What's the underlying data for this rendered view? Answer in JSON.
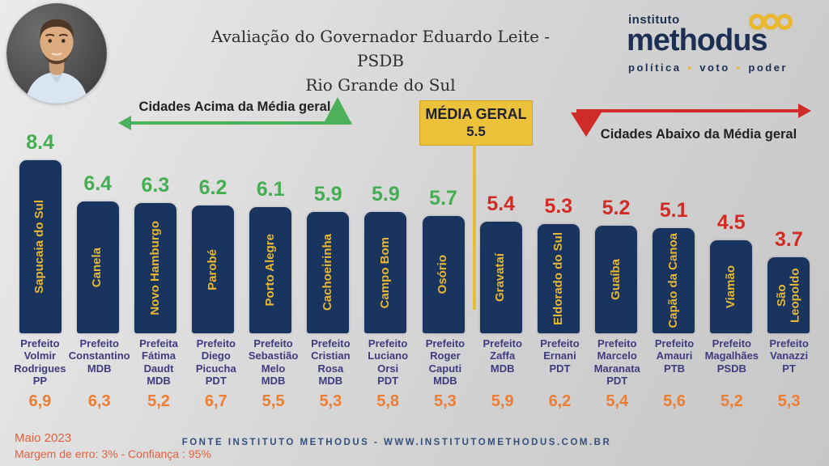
{
  "header": {
    "title_line1": "Avaliação do Governador Eduardo Leite - PSDB",
    "title_line2": "Rio Grande do Sul",
    "logo": {
      "top": "instituto",
      "main": "methodus",
      "tagline_words": [
        "política",
        "voto",
        "poder"
      ]
    }
  },
  "annotations": {
    "above_label": "Cidades Acima da Média geral",
    "below_label": "Cidades Abaixo da Média geral",
    "average_box_title": "MÉDIA GERAL",
    "average_box_value": "5.5"
  },
  "chart_data": {
    "type": "bar",
    "title": "Avaliação do Governador Eduardo Leite - PSDB — Rio Grande do Sul",
    "average": 5.5,
    "categories": [
      "Sapucaia do Sul",
      "Canela",
      "Novo Hamburgo",
      "Parobé",
      "Porto Alegre",
      "Cachoeirinha",
      "Campo Bom",
      "Osório",
      "Gravataí",
      "Eldorado do Sul",
      "Guaíba",
      "Capão da Canoa",
      "Viamão",
      "São Leopoldo"
    ],
    "values": [
      8.4,
      6.4,
      6.3,
      6.2,
      6.1,
      5.9,
      5.9,
      5.7,
      5.4,
      5.3,
      5.2,
      5.1,
      4.5,
      3.7
    ],
    "value_labels": [
      "8.4",
      "6.4",
      "6.3",
      "6.2",
      "6.1",
      "5.9",
      "5.9",
      "5.7",
      "5.4",
      "5.3",
      "5.2",
      "5.1",
      "4.5",
      "3.7"
    ],
    "groups": [
      "above",
      "above",
      "above",
      "above",
      "above",
      "above",
      "above",
      "above",
      "below",
      "below",
      "below",
      "below",
      "below",
      "below"
    ],
    "mayor_labels": [
      [
        "Prefeito",
        "Volmir",
        "Rodrigues",
        "PP"
      ],
      [
        "Prefeito",
        "Constantino",
        "MDB"
      ],
      [
        "Prefeita",
        "Fátima",
        "Daudt",
        "MDB"
      ],
      [
        "Prefeito",
        "Diego",
        "Picucha",
        "PDT"
      ],
      [
        "Prefeito",
        "Sebastião",
        "Melo",
        "MDB"
      ],
      [
        "Prefeito",
        "Cristian",
        "Rosa",
        "MDB"
      ],
      [
        "Prefeito",
        "Luciano",
        "Orsi",
        "PDT"
      ],
      [
        "Prefeito",
        "Roger",
        "Caputi",
        "MDB"
      ],
      [
        "Prefeito",
        "Zaffa",
        "MDB"
      ],
      [
        "Prefeito",
        "Ernani",
        "PDT"
      ],
      [
        "Prefeito",
        "Marcelo",
        "Maranata",
        "PDT"
      ],
      [
        "Prefeito",
        "Amauri",
        "PTB"
      ],
      [
        "Prefeito",
        "Magalhães",
        "PSDB"
      ],
      [
        "Prefeito",
        "Vanazzi",
        "PT"
      ]
    ],
    "mayor_scores": [
      "6,9",
      "6,3",
      "5,2",
      "6,7",
      "5,5",
      "5,3",
      "5,8",
      "5,3",
      "5,9",
      "6,2",
      "5,4",
      "5,6",
      "5,2",
      "5,3"
    ]
  },
  "colors": {
    "bar": "#18345f",
    "city_text": "#e9b831",
    "above_value": "#45ad52",
    "below_value": "#d22b24",
    "mayor_text": "#3d3c7e",
    "mayor_score": "#ed7d31",
    "average_box": "#ecc23a",
    "green_arrow": "#4db05a",
    "red_arrow": "#cf2b28"
  },
  "footer": {
    "date": "Maio 2023",
    "margin_note": "Margem de erro: 3% - Confiança : 95%",
    "source": "FONTE INSTITUTO METHODUS - WWW.INSTITUTOMETHODUS.COM.BR"
  }
}
